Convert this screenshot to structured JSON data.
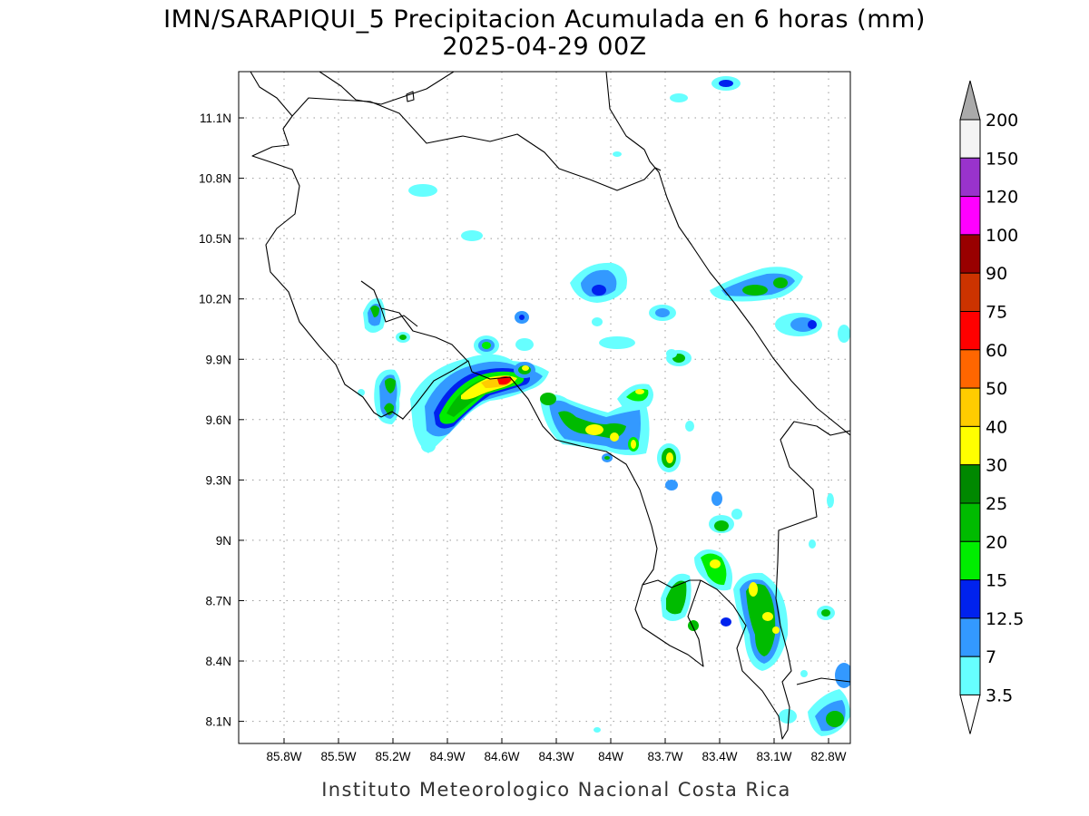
{
  "title": {
    "line1": "IMN/SARAPIQUI_5 Precipitacion Acumulada en 6 horas (mm)",
    "line2": "2025-04-29 00Z"
  },
  "footer": "Instituto Meteorologico Nacional Costa Rica",
  "map": {
    "lon_range": [
      -86.05,
      -82.68
    ],
    "lat_range": [
      7.99,
      11.33
    ],
    "lon_ticks": [
      {
        "value": -85.8,
        "label": "85.8W"
      },
      {
        "value": -85.5,
        "label": "85.5W"
      },
      {
        "value": -85.2,
        "label": "85.2W"
      },
      {
        "value": -84.9,
        "label": "84.9W"
      },
      {
        "value": -84.6,
        "label": "84.6W"
      },
      {
        "value": -84.3,
        "label": "84.3W"
      },
      {
        "value": -84.0,
        "label": "84W"
      },
      {
        "value": -83.7,
        "label": "83.7W"
      },
      {
        "value": -83.4,
        "label": "83.4W"
      },
      {
        "value": -83.1,
        "label": "83.1W"
      },
      {
        "value": -82.8,
        "label": "82.8W"
      }
    ],
    "lat_ticks": [
      {
        "value": 11.1,
        "label": "11.1N"
      },
      {
        "value": 10.8,
        "label": "10.8N"
      },
      {
        "value": 10.5,
        "label": "10.5N"
      },
      {
        "value": 10.2,
        "label": "10.2N"
      },
      {
        "value": 9.9,
        "label": "9.9N"
      },
      {
        "value": 9.6,
        "label": "9.6N"
      },
      {
        "value": 9.3,
        "label": "9.3N"
      },
      {
        "value": 9.0,
        "label": "9N"
      },
      {
        "value": 8.7,
        "label": "8.7N"
      },
      {
        "value": 8.4,
        "label": "8.4N"
      },
      {
        "value": 8.1,
        "label": "8.1N"
      }
    ],
    "grid": "dotted"
  },
  "colorbar": {
    "levels": [
      {
        "label": "3.5"
      },
      {
        "label": "7"
      },
      {
        "label": "12.5"
      },
      {
        "label": "15"
      },
      {
        "label": "20"
      },
      {
        "label": "25"
      },
      {
        "label": "30"
      },
      {
        "label": "40"
      },
      {
        "label": "50"
      },
      {
        "label": "60"
      },
      {
        "label": "75"
      },
      {
        "label": "90"
      },
      {
        "label": "100"
      },
      {
        "label": "120"
      },
      {
        "label": "150"
      },
      {
        "label": "200"
      }
    ],
    "colors": [
      "#ffffff",
      "#66ffff",
      "#3399ff",
      "#0022ee",
      "#00ee00",
      "#00bb00",
      "#008800",
      "#ffff00",
      "#ffcc00",
      "#ff6600",
      "#ff0000",
      "#cc3300",
      "#990000",
      "#ff00ff",
      "#9933cc",
      "#f4f4f4",
      "#aaaaaa"
    ]
  }
}
